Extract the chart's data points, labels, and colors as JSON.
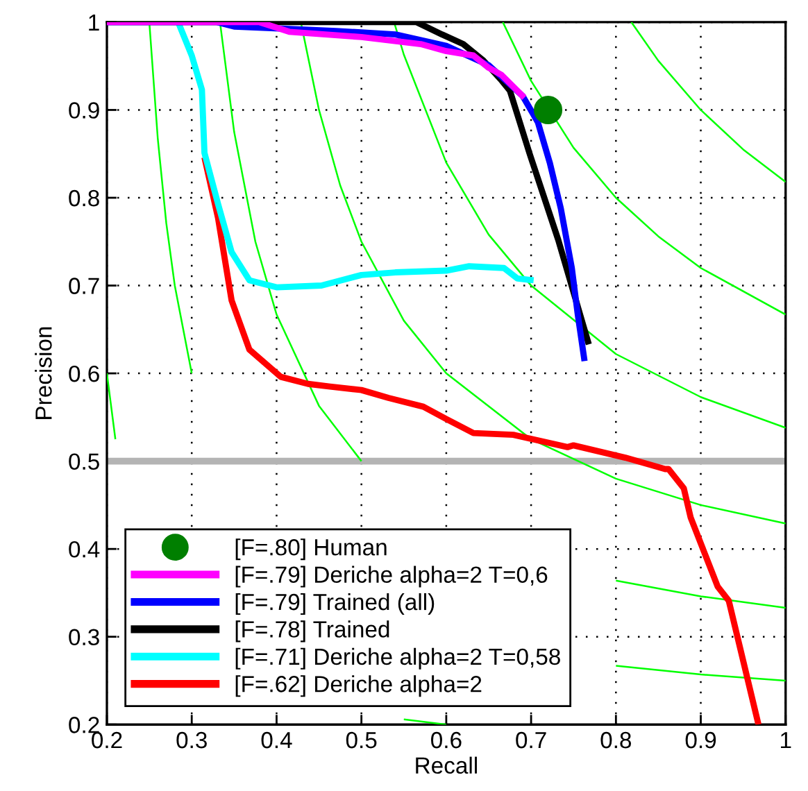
{
  "chart_data": {
    "type": "line",
    "xlabel": "Recall",
    "ylabel": "Precision",
    "xlim": [
      0.2,
      1
    ],
    "ylim": [
      0.2,
      1
    ],
    "xticks": [
      0.2,
      0.3,
      0.4,
      0.5,
      0.6,
      0.7,
      0.8,
      0.9,
      1
    ],
    "yticks": [
      0.2,
      0.3,
      0.4,
      0.5,
      0.6,
      0.7,
      0.8,
      0.9,
      1
    ],
    "grid": true,
    "legend": "bottom left",
    "line_style": "solid",
    "ref_lines": [
      {
        "axis": "y",
        "value": 0.5,
        "color": "#b4b4b4"
      }
    ],
    "series": [
      {
        "color": "#00ff00",
        "x": [
          0.2,
          0.21,
          0.22,
          0.25,
          0.3,
          0.35,
          0.4,
          0.5,
          0.55,
          0.6
        ],
        "values": [
          0.6,
          0.525,
          null,
          null,
          null,
          null,
          null,
          null,
          0.206,
          0.2
        ]
      },
      {
        "color": "#00ff00",
        "x": [
          0.25,
          0.26,
          0.27,
          0.28,
          0.3,
          0.35,
          0.4,
          0.5,
          0.6,
          0.7,
          0.8,
          0.9,
          1
        ],
        "values": [
          1,
          0.867,
          0.771,
          0.7,
          0.6,
          null,
          null,
          null,
          null,
          null,
          0.267,
          0.257,
          0.25
        ]
      },
      {
        "color": "#00ff00",
        "x": [
          0.3333,
          0.35,
          0.375,
          0.4,
          0.45,
          0.5,
          0.6,
          0.7,
          0.8,
          0.9,
          1
        ],
        "values": [
          1,
          0.875,
          0.75,
          0.667,
          0.563,
          0.5,
          null,
          null,
          0.364,
          0.346,
          0.333
        ]
      },
      {
        "color": "#00ff00",
        "x": [
          0.4286,
          0.45,
          0.475,
          0.5,
          0.55,
          0.6,
          0.7,
          0.8,
          0.9,
          1
        ],
        "values": [
          1,
          0.9,
          0.814,
          0.75,
          0.66,
          0.6,
          0.525,
          0.48,
          0.45,
          0.429
        ]
      },
      {
        "color": "#00ff00",
        "x": [
          0.5385,
          0.55,
          0.6,
          0.65,
          0.7,
          0.8,
          0.9,
          1
        ],
        "values": [
          1,
          0.963,
          0.84,
          0.758,
          0.7,
          0.622,
          0.573,
          0.538
        ]
      },
      {
        "color": "#00ff00",
        "x": [
          0.6667,
          0.7,
          0.75,
          0.8,
          0.85,
          0.9,
          1
        ],
        "values": [
          1,
          0.933,
          0.857,
          0.8,
          0.756,
          0.72,
          0.667
        ]
      },
      {
        "color": "#00ff00",
        "x": [
          0.8182,
          0.85,
          0.9,
          0.95,
          1
        ],
        "values": [
          1,
          0.956,
          0.9,
          0.855,
          0.818
        ]
      },
      {
        "name": "[F=.62] Deriche alpha=2",
        "color": "#ff0000",
        "x": [
          0.315,
          0.331,
          0.347,
          0.368,
          0.405,
          0.437,
          0.463,
          0.5,
          0.532,
          0.573,
          0.6,
          0.632,
          0.679,
          0.743,
          0.75,
          0.811,
          0.858,
          0.862,
          0.88,
          0.888,
          0.92,
          0.933,
          0.968
        ],
        "values": [
          0.846,
          0.777,
          0.683,
          0.627,
          0.596,
          0.588,
          0.585,
          0.581,
          0.572,
          0.562,
          0.548,
          0.532,
          0.53,
          0.516,
          0.518,
          0.504,
          0.491,
          0.491,
          0.469,
          0.436,
          0.357,
          0.341,
          0.2
        ]
      },
      {
        "name": "[F=.71] Deriche alpha=2 T=0,58",
        "color": "#00ffff",
        "x": [
          0.2,
          0.284,
          0.3,
          0.312,
          0.315,
          0.331,
          0.347,
          0.368,
          0.4,
          0.453,
          0.5,
          0.54,
          0.6,
          0.627,
          0.668,
          0.684,
          0.703
        ],
        "values": [
          1,
          1,
          0.962,
          0.923,
          0.851,
          0.793,
          0.738,
          0.706,
          0.698,
          0.7,
          0.712,
          0.715,
          0.717,
          0.722,
          0.72,
          0.708,
          0.706
        ]
      },
      {
        "name": "[F=.78] Trained",
        "color": "#000000",
        "x": [
          0.2,
          0.565,
          0.595,
          0.62,
          0.643,
          0.664,
          0.675,
          0.698,
          0.732,
          0.768
        ],
        "values": [
          1,
          1,
          0.986,
          0.975,
          0.957,
          0.935,
          0.922,
          0.851,
          0.752,
          0.633
        ]
      },
      {
        "name": "[F=.79] Trained (all)",
        "color": "#0000ff",
        "x": [
          0.2,
          0.33,
          0.35,
          0.47,
          0.54,
          0.6,
          0.65,
          0.69,
          0.708,
          0.722,
          0.735,
          0.748,
          0.755,
          0.763
        ],
        "values": [
          1,
          1,
          0.995,
          0.99,
          0.986,
          0.973,
          0.951,
          0.916,
          0.886,
          0.84,
          0.788,
          0.72,
          0.667,
          0.614
        ]
      },
      {
        "name": "[F=.79] Deriche alpha=2 T=0,6",
        "color": "#ff00ff",
        "x": [
          0.2,
          0.38,
          0.415,
          0.5,
          0.57,
          0.6,
          0.632,
          0.65,
          0.665,
          0.692
        ],
        "values": [
          1,
          1,
          0.989,
          0.983,
          0.975,
          0.967,
          0.962,
          0.948,
          0.94,
          0.914
        ]
      },
      {
        "type": "scatter",
        "name": "[F=.80] Human",
        "color": "#007f00",
        "marker": "circle",
        "x": [
          0.72
        ],
        "values": [
          0.9
        ]
      }
    ]
  }
}
